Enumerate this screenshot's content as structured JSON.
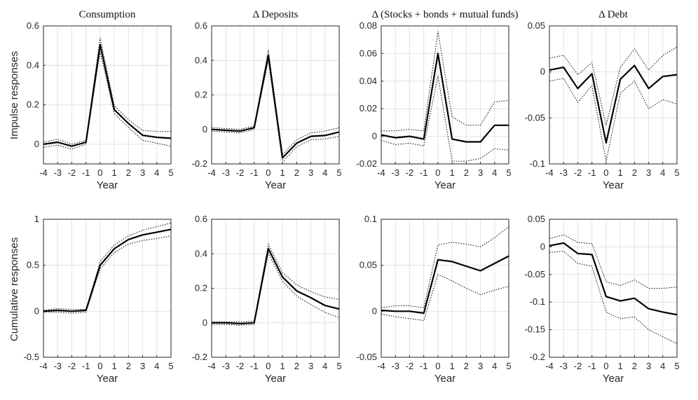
{
  "row_labels": [
    "Impulse responses",
    "Cumulative responses"
  ],
  "x_label": "Year",
  "chart_data": [
    {
      "type": "line",
      "row": 0,
      "col": 0,
      "title": "Consumption",
      "x": [
        -4,
        -3,
        -2,
        -1,
        0,
        1,
        2,
        3,
        4,
        5
      ],
      "xlim": [
        -4,
        5
      ],
      "ylim": [
        -0.1,
        0.6
      ],
      "yticks": [
        0,
        0.2,
        0.4,
        0.6
      ],
      "ytick_labels": [
        "0",
        "0.2",
        "0.4",
        "0.6"
      ],
      "xlabel": "Year",
      "ylabel": "Impulse responses",
      "grid": true,
      "series": [
        {
          "role": "estimate",
          "values": [
            0.0,
            0.01,
            -0.01,
            0.01,
            0.505,
            0.175,
            0.105,
            0.045,
            0.035,
            0.03
          ]
        },
        {
          "role": "upper",
          "values": [
            0.01,
            0.025,
            0.0,
            0.02,
            0.54,
            0.195,
            0.125,
            0.07,
            0.065,
            0.065
          ]
        },
        {
          "role": "lower",
          "values": [
            -0.015,
            -0.005,
            -0.025,
            0.0,
            0.47,
            0.155,
            0.085,
            0.02,
            0.005,
            -0.01
          ]
        }
      ]
    },
    {
      "type": "line",
      "row": 0,
      "col": 1,
      "title": "Δ Deposits",
      "x": [
        -4,
        -3,
        -2,
        -1,
        0,
        1,
        2,
        3,
        4,
        5
      ],
      "xlim": [
        -4,
        5
      ],
      "ylim": [
        -0.2,
        0.6
      ],
      "yticks": [
        -0.2,
        0,
        0.2,
        0.4,
        0.6
      ],
      "ytick_labels": [
        "-0.2",
        "0",
        "0.2",
        "0.4",
        "0.6"
      ],
      "xlabel": "Year",
      "ylabel": "",
      "grid": true,
      "series": [
        {
          "role": "estimate",
          "values": [
            0.0,
            -0.005,
            -0.01,
            0.01,
            0.43,
            -0.165,
            -0.08,
            -0.04,
            -0.035,
            -0.015
          ]
        },
        {
          "role": "upper",
          "values": [
            0.01,
            0.005,
            0.0,
            0.02,
            0.46,
            -0.145,
            -0.06,
            -0.02,
            -0.01,
            0.01
          ]
        },
        {
          "role": "lower",
          "values": [
            -0.01,
            -0.015,
            -0.02,
            0.0,
            0.4,
            -0.19,
            -0.1,
            -0.06,
            -0.055,
            -0.04
          ]
        }
      ]
    },
    {
      "type": "line",
      "row": 0,
      "col": 2,
      "title": "Δ (Stocks + bonds + mutual funds)",
      "x": [
        -4,
        -3,
        -2,
        -1,
        0,
        1,
        2,
        3,
        4,
        5
      ],
      "xlim": [
        -4,
        5
      ],
      "ylim": [
        -0.02,
        0.08
      ],
      "yticks": [
        -0.02,
        0,
        0.02,
        0.04,
        0.06,
        0.08
      ],
      "ytick_labels": [
        "-0.02",
        "0",
        "0.02",
        "0.04",
        "0.06",
        "0.08"
      ],
      "xlabel": "Year",
      "ylabel": "",
      "grid": true,
      "series": [
        {
          "role": "estimate",
          "values": [
            0.001,
            -0.001,
            0.0,
            -0.002,
            0.06,
            -0.002,
            -0.004,
            -0.004,
            0.008,
            0.008
          ]
        },
        {
          "role": "upper",
          "values": [
            0.004,
            0.004,
            0.005,
            0.004,
            0.076,
            0.014,
            0.008,
            0.008,
            0.025,
            0.026
          ]
        },
        {
          "role": "lower",
          "values": [
            -0.003,
            -0.006,
            -0.005,
            -0.007,
            0.044,
            -0.018,
            -0.018,
            -0.016,
            -0.009,
            -0.01
          ]
        }
      ]
    },
    {
      "type": "line",
      "row": 0,
      "col": 3,
      "title": "Δ Debt",
      "x": [
        -4,
        -3,
        -2,
        -1,
        0,
        1,
        2,
        3,
        4,
        5
      ],
      "xlim": [
        -4,
        5
      ],
      "ylim": [
        -0.1,
        0.05
      ],
      "yticks": [
        -0.1,
        -0.05,
        0,
        0.05
      ],
      "ytick_labels": [
        "-0.1",
        "-0.05",
        "0",
        "0.05"
      ],
      "xlabel": "Year",
      "ylabel": "",
      "grid": true,
      "series": [
        {
          "role": "estimate",
          "values": [
            0.002,
            0.005,
            -0.018,
            -0.002,
            -0.077,
            -0.008,
            0.007,
            -0.018,
            -0.005,
            -0.003
          ]
        },
        {
          "role": "upper",
          "values": [
            0.015,
            0.018,
            -0.003,
            0.01,
            -0.058,
            0.005,
            0.025,
            0.002,
            0.018,
            0.027
          ]
        },
        {
          "role": "lower",
          "values": [
            -0.01,
            -0.007,
            -0.033,
            -0.015,
            -0.097,
            -0.023,
            -0.01,
            -0.04,
            -0.03,
            -0.035
          ]
        }
      ]
    },
    {
      "type": "line",
      "row": 1,
      "col": 0,
      "title": "",
      "x": [
        -4,
        -3,
        -2,
        -1,
        0,
        1,
        2,
        3,
        4,
        5
      ],
      "xlim": [
        -4,
        5
      ],
      "ylim": [
        -0.5,
        1
      ],
      "yticks": [
        -0.5,
        0,
        0.5,
        1
      ],
      "ytick_labels": [
        "-0.5",
        "0",
        "0.5",
        "1"
      ],
      "xlabel": "Year",
      "ylabel": "Cumulative responses",
      "grid": true,
      "series": [
        {
          "role": "estimate",
          "values": [
            0.0,
            0.01,
            0.0,
            0.01,
            0.5,
            0.68,
            0.78,
            0.83,
            0.86,
            0.89
          ]
        },
        {
          "role": "upper",
          "values": [
            0.01,
            0.03,
            0.02,
            0.02,
            0.54,
            0.72,
            0.82,
            0.88,
            0.92,
            0.96
          ]
        },
        {
          "role": "lower",
          "values": [
            -0.01,
            -0.01,
            -0.02,
            -0.01,
            0.46,
            0.64,
            0.73,
            0.77,
            0.79,
            0.82
          ]
        }
      ]
    },
    {
      "type": "line",
      "row": 1,
      "col": 1,
      "title": "",
      "x": [
        -4,
        -3,
        -2,
        -1,
        0,
        1,
        2,
        3,
        4,
        5
      ],
      "xlim": [
        -4,
        5
      ],
      "ylim": [
        -0.2,
        0.6
      ],
      "yticks": [
        -0.2,
        0,
        0.2,
        0.4,
        0.6
      ],
      "ytick_labels": [
        "-0.2",
        "0",
        "0.2",
        "0.4",
        "0.6"
      ],
      "xlabel": "Year",
      "ylabel": "",
      "grid": true,
      "series": [
        {
          "role": "estimate",
          "values": [
            0.0,
            0.0,
            -0.005,
            0.0,
            0.43,
            0.265,
            0.185,
            0.145,
            0.1,
            0.08
          ]
        },
        {
          "role": "upper",
          "values": [
            0.005,
            0.005,
            0.005,
            0.01,
            0.455,
            0.29,
            0.22,
            0.18,
            0.15,
            0.135
          ]
        },
        {
          "role": "lower",
          "values": [
            -0.01,
            -0.01,
            -0.015,
            -0.01,
            0.405,
            0.24,
            0.155,
            0.105,
            0.06,
            0.03
          ]
        }
      ]
    },
    {
      "type": "line",
      "row": 1,
      "col": 2,
      "title": "",
      "x": [
        -4,
        -3,
        -2,
        -1,
        0,
        1,
        2,
        3,
        4,
        5
      ],
      "xlim": [
        -4,
        5
      ],
      "ylim": [
        -0.05,
        0.1
      ],
      "yticks": [
        -0.05,
        0,
        0.05,
        0.1
      ],
      "ytick_labels": [
        "-0.05",
        "0",
        "0.05",
        "0.1"
      ],
      "xlabel": "Year",
      "ylabel": "",
      "grid": true,
      "series": [
        {
          "role": "estimate",
          "values": [
            0.001,
            0.0,
            0.0,
            -0.002,
            0.056,
            0.054,
            0.049,
            0.044,
            0.052,
            0.06
          ]
        },
        {
          "role": "upper",
          "values": [
            0.004,
            0.006,
            0.006,
            0.004,
            0.072,
            0.075,
            0.073,
            0.07,
            0.08,
            0.092
          ]
        },
        {
          "role": "lower",
          "values": [
            -0.003,
            -0.006,
            -0.008,
            -0.01,
            0.04,
            0.033,
            0.025,
            0.018,
            0.023,
            0.027
          ]
        }
      ]
    },
    {
      "type": "line",
      "row": 1,
      "col": 3,
      "title": "",
      "x": [
        -4,
        -3,
        -2,
        -1,
        0,
        1,
        2,
        3,
        4,
        5
      ],
      "xlim": [
        -4,
        5
      ],
      "ylim": [
        -0.2,
        0.05
      ],
      "yticks": [
        -0.2,
        -0.15,
        -0.1,
        -0.05,
        0,
        0.05
      ],
      "ytick_labels": [
        "-0.2",
        "-0.15",
        "-0.1",
        "-0.05",
        "0",
        "0.05"
      ],
      "xlabel": "Year",
      "ylabel": "",
      "grid": true,
      "series": [
        {
          "role": "estimate",
          "values": [
            0.002,
            0.007,
            -0.012,
            -0.014,
            -0.09,
            -0.098,
            -0.093,
            -0.112,
            -0.118,
            -0.123
          ]
        },
        {
          "role": "upper",
          "values": [
            0.015,
            0.022,
            0.008,
            0.006,
            -0.063,
            -0.07,
            -0.06,
            -0.075,
            -0.075,
            -0.073
          ]
        },
        {
          "role": "lower",
          "values": [
            -0.01,
            -0.008,
            -0.03,
            -0.035,
            -0.118,
            -0.13,
            -0.127,
            -0.15,
            -0.163,
            -0.175
          ]
        }
      ]
    }
  ]
}
